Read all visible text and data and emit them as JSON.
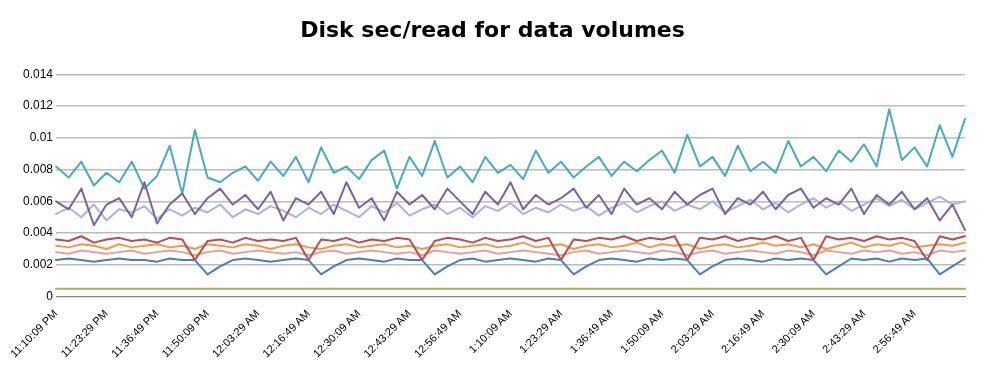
{
  "chart_data": {
    "type": "line",
    "title": "Disk sec/read for data volumes",
    "categories": [
      "11:10:09 PM",
      null,
      null,
      null,
      "11:23:29 PM",
      null,
      null,
      null,
      "11:36:49 PM",
      null,
      null,
      null,
      "11:50:09 PM",
      null,
      null,
      null,
      "12:03:29 AM",
      null,
      null,
      null,
      "12:16:49 AM",
      null,
      null,
      null,
      "12:30:09 AM",
      null,
      null,
      null,
      "12:43:29 AM",
      null,
      null,
      null,
      "12:56:49 AM",
      null,
      null,
      null,
      "1:10:09 AM",
      null,
      null,
      null,
      "1:23:29 AM",
      null,
      null,
      null,
      "1:36:49 AM",
      null,
      null,
      null,
      "1:50:09 AM",
      null,
      null,
      null,
      "2:03:29 AM",
      null,
      null,
      null,
      "2:16:49 AM",
      null,
      null,
      null,
      "2:30:09 AM",
      null,
      null,
      null,
      "2:43:29 AM",
      null,
      null,
      null,
      "2:56:49 AM",
      null,
      null,
      null,
      null
    ],
    "series": [
      {
        "color": "#4a7ebb",
        "values": [
          0.0023,
          0.0024,
          0.0023,
          0.0022,
          0.0023,
          0.0024,
          0.0023,
          0.0023,
          0.0022,
          0.0024,
          0.0023,
          0.0023,
          0.0014,
          0.0019,
          0.0023,
          0.0024,
          0.0023,
          0.0022,
          0.0023,
          0.0024,
          0.0023,
          0.0014,
          0.0019,
          0.0023,
          0.0024,
          0.0023,
          0.0022,
          0.0024,
          0.0023,
          0.0023,
          0.0014,
          0.0019,
          0.0023,
          0.0024,
          0.0022,
          0.0023,
          0.0024,
          0.0023,
          0.0022,
          0.0024,
          0.0023,
          0.0014,
          0.0019,
          0.0023,
          0.0024,
          0.0023,
          0.0022,
          0.0024,
          0.0023,
          0.0024,
          0.0023,
          0.0014,
          0.0019,
          0.0023,
          0.0024,
          0.0023,
          0.0022,
          0.0024,
          0.0023,
          0.0024,
          0.0023,
          0.0014,
          0.0019,
          0.0024,
          0.0023,
          0.0024,
          0.0022,
          0.0024,
          0.0023,
          0.0024,
          0.0014,
          0.0019,
          0.0024
        ]
      },
      {
        "color": "#be4b48",
        "values": [
          0.0036,
          0.0035,
          0.0038,
          0.0034,
          0.0036,
          0.0037,
          0.0035,
          0.0036,
          0.0034,
          0.0037,
          0.0036,
          0.0023,
          0.0035,
          0.0036,
          0.0034,
          0.0037,
          0.0035,
          0.0036,
          0.0035,
          0.0037,
          0.0023,
          0.0036,
          0.0035,
          0.0037,
          0.0034,
          0.0036,
          0.0035,
          0.0037,
          0.0036,
          0.0023,
          0.0035,
          0.0037,
          0.0036,
          0.0034,
          0.0037,
          0.0035,
          0.0036,
          0.0038,
          0.0035,
          0.0037,
          0.0023,
          0.0036,
          0.0035,
          0.0037,
          0.0036,
          0.0038,
          0.0035,
          0.0037,
          0.0036,
          0.0038,
          0.0023,
          0.0037,
          0.0036,
          0.0038,
          0.0035,
          0.0037,
          0.0036,
          0.0038,
          0.0035,
          0.0037,
          0.0023,
          0.0038,
          0.0036,
          0.0037,
          0.0035,
          0.0038,
          0.0036,
          0.0037,
          0.0035,
          0.0023,
          0.0038,
          0.0036,
          0.0038
        ]
      },
      {
        "color": "#98b954",
        "values": [
          0.0005,
          0.0005,
          0.0005,
          0.0005,
          0.0005,
          0.0005,
          0.0005,
          0.0005,
          0.0005,
          0.0005,
          0.0005,
          0.0005,
          0.0005,
          0.0005,
          0.0005,
          0.0005,
          0.0005,
          0.0005,
          0.0005,
          0.0005,
          0.0005,
          0.0005,
          0.0005,
          0.0005,
          0.0005,
          0.0005,
          0.0005,
          0.0005,
          0.0005,
          0.0005,
          0.0005,
          0.0005,
          0.0005,
          0.0005,
          0.0005,
          0.0005,
          0.0005,
          0.0005,
          0.0005,
          0.0005,
          0.0005,
          0.0005,
          0.0005,
          0.0005,
          0.0005,
          0.0005,
          0.0005,
          0.0005,
          0.0005,
          0.0005,
          0.0005,
          0.0005,
          0.0005,
          0.0005,
          0.0005,
          0.0005,
          0.0005,
          0.0005,
          0.0005,
          0.0005,
          0.0005,
          0.0005,
          0.0005,
          0.0005,
          0.0005,
          0.0005,
          0.0005,
          0.0005,
          0.0005,
          0.0005,
          0.0005,
          0.0005,
          0.0005
        ]
      },
      {
        "color": "#7d60a0",
        "values": [
          0.006,
          0.0055,
          0.0068,
          0.0045,
          0.0058,
          0.0062,
          0.005,
          0.0072,
          0.0046,
          0.0058,
          0.0065,
          0.0052,
          0.0062,
          0.0068,
          0.0058,
          0.0064,
          0.0055,
          0.0066,
          0.0048,
          0.0062,
          0.0058,
          0.0066,
          0.0052,
          0.0072,
          0.0056,
          0.0062,
          0.0048,
          0.0066,
          0.0058,
          0.0064,
          0.0055,
          0.0068,
          0.006,
          0.0052,
          0.0066,
          0.0058,
          0.0072,
          0.0055,
          0.0064,
          0.0058,
          0.0062,
          0.0068,
          0.0056,
          0.0064,
          0.0052,
          0.0068,
          0.0058,
          0.0062,
          0.0055,
          0.0066,
          0.0058,
          0.0064,
          0.0068,
          0.0052,
          0.0062,
          0.0058,
          0.0066,
          0.0055,
          0.0064,
          0.0068,
          0.0056,
          0.0062,
          0.0058,
          0.0068,
          0.0052,
          0.0064,
          0.0058,
          0.0066,
          0.0055,
          0.0062,
          0.0048,
          0.0058,
          0.0042
        ]
      },
      {
        "color": "#46aac5",
        "values": [
          0.0082,
          0.0075,
          0.0085,
          0.007,
          0.0078,
          0.0072,
          0.0085,
          0.0068,
          0.0076,
          0.0095,
          0.0065,
          0.0105,
          0.0075,
          0.0072,
          0.0078,
          0.0082,
          0.0073,
          0.0085,
          0.0076,
          0.0088,
          0.0072,
          0.0094,
          0.0078,
          0.0082,
          0.0074,
          0.0086,
          0.0092,
          0.0068,
          0.0088,
          0.0076,
          0.0098,
          0.0075,
          0.0082,
          0.0072,
          0.0088,
          0.0078,
          0.0083,
          0.0074,
          0.0092,
          0.0078,
          0.0085,
          0.0075,
          0.0082,
          0.0088,
          0.0076,
          0.0085,
          0.0079,
          0.0086,
          0.0092,
          0.0078,
          0.0102,
          0.0082,
          0.0088,
          0.0076,
          0.0095,
          0.0079,
          0.0085,
          0.0078,
          0.0098,
          0.0082,
          0.0088,
          0.0079,
          0.0092,
          0.0085,
          0.0096,
          0.0082,
          0.0118,
          0.0086,
          0.0094,
          0.0082,
          0.0108,
          0.0088,
          0.0112
        ]
      },
      {
        "color": "#f79646",
        "values": [
          0.0032,
          0.0031,
          0.0033,
          0.0032,
          0.003,
          0.0033,
          0.0031,
          0.0032,
          0.0033,
          0.0031,
          0.0032,
          0.003,
          0.0033,
          0.0032,
          0.0031,
          0.0033,
          0.0032,
          0.003,
          0.0032,
          0.0033,
          0.0031,
          0.003,
          0.0032,
          0.0033,
          0.0031,
          0.0032,
          0.0033,
          0.0031,
          0.0032,
          0.003,
          0.0032,
          0.0033,
          0.0031,
          0.0032,
          0.0033,
          0.0031,
          0.0032,
          0.0034,
          0.0031,
          0.0032,
          0.0033,
          0.003,
          0.0032,
          0.0033,
          0.0031,
          0.0032,
          0.0034,
          0.0031,
          0.0033,
          0.0032,
          0.0033,
          0.003,
          0.0032,
          0.0033,
          0.0031,
          0.0032,
          0.0034,
          0.0032,
          0.0033,
          0.0031,
          0.0033,
          0.003,
          0.0032,
          0.0034,
          0.0031,
          0.0033,
          0.0032,
          0.0034,
          0.0031,
          0.0032,
          0.0033,
          0.0032,
          0.0034
        ]
      },
      {
        "color": "#a5b6dc",
        "values": [
          0.0052,
          0.0056,
          0.005,
          0.0058,
          0.0048,
          0.0055,
          0.0053,
          0.0057,
          0.0049,
          0.0055,
          0.0051,
          0.0056,
          0.0053,
          0.0058,
          0.005,
          0.0055,
          0.0052,
          0.0057,
          0.0054,
          0.005,
          0.0056,
          0.0052,
          0.0058,
          0.0054,
          0.005,
          0.0057,
          0.0053,
          0.0059,
          0.0051,
          0.0055,
          0.0058,
          0.0052,
          0.0056,
          0.005,
          0.0057,
          0.0054,
          0.0059,
          0.0052,
          0.0056,
          0.0053,
          0.0058,
          0.0054,
          0.0057,
          0.0051,
          0.0056,
          0.0059,
          0.0053,
          0.0057,
          0.006,
          0.0054,
          0.0058,
          0.0055,
          0.006,
          0.0053,
          0.0057,
          0.0061,
          0.0055,
          0.0059,
          0.0053,
          0.0058,
          0.0062,
          0.0056,
          0.006,
          0.0054,
          0.0058,
          0.0062,
          0.0057,
          0.0061,
          0.0055,
          0.0059,
          0.0063,
          0.0058,
          0.006
        ]
      },
      {
        "color": "#e0a09e",
        "values": [
          0.0028,
          0.0027,
          0.0029,
          0.0028,
          0.0027,
          0.0028,
          0.0029,
          0.0027,
          0.0028,
          0.0029,
          0.0028,
          0.0026,
          0.0028,
          0.0029,
          0.0027,
          0.0028,
          0.0029,
          0.0028,
          0.0027,
          0.0028,
          0.0026,
          0.0028,
          0.0029,
          0.0027,
          0.0028,
          0.0029,
          0.0028,
          0.0027,
          0.0028,
          0.0026,
          0.0029,
          0.0028,
          0.0027,
          0.0028,
          0.0029,
          0.0027,
          0.0028,
          0.0029,
          0.0028,
          0.0027,
          0.0026,
          0.0028,
          0.0029,
          0.0027,
          0.0028,
          0.0029,
          0.0028,
          0.0027,
          0.0029,
          0.0028,
          0.0026,
          0.0028,
          0.0029,
          0.0027,
          0.0028,
          0.0029,
          0.0028,
          0.0027,
          0.0029,
          0.0028,
          0.0026,
          0.0029,
          0.0028,
          0.0027,
          0.0029,
          0.0028,
          0.0029,
          0.0027,
          0.0028,
          0.0026,
          0.0029,
          0.0028,
          0.0029
        ]
      }
    ],
    "ylim": [
      0,
      0.014
    ],
    "yticks": [
      0,
      0.002,
      0.004,
      0.006,
      0.008,
      0.01,
      0.012,
      0.014
    ],
    "grid": "y",
    "legend": false,
    "marker": "none",
    "line_style": "solid"
  }
}
